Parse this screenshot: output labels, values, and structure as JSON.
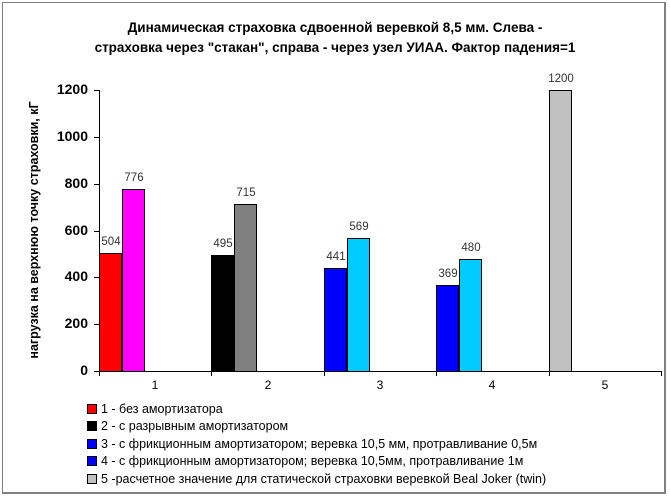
{
  "chart_data": {
    "type": "bar",
    "title": "Динамическая страховка сдвоенной веревкой 8,5 мм. Слева - страховка через \"стакан\", справа - через узел УИАА. Фактор падения=1",
    "title_lines": [
      "Динамическая страховка сдвоенной веревкой 8,5 мм. Слева -",
      "страховка через \"стакан\", справа - через узел УИАА. Фактор падения=1"
    ],
    "xlabel": "",
    "ylabel": "нагрузка на верхнюю точку страховки, кГ",
    "ylim": [
      0,
      1200
    ],
    "yticks": [
      "0",
      "200",
      "400",
      "600",
      "800",
      "1000",
      "1200"
    ],
    "categories": [
      "1",
      "2",
      "3",
      "4",
      "5"
    ],
    "grid": false,
    "legend_position": "bottom",
    "series": [
      {
        "name": "Слева - страховка через \"стакан\"",
        "values": [
          504,
          495,
          441,
          369,
          null
        ],
        "colors": [
          "#ff0000",
          "#000000",
          "#0000ff",
          "#0000ff",
          null
        ]
      },
      {
        "name": "Справа - через узел УИАА",
        "values": [
          776,
          715,
          569,
          480,
          null
        ],
        "colors": [
          "#ff00ff",
          "#808080",
          "#00ccff",
          "#00ccff",
          null
        ]
      },
      {
        "name": "Расчетное значение",
        "values": [
          null,
          null,
          null,
          null,
          1200
        ],
        "colors": [
          null,
          null,
          null,
          null,
          "#c0c0c0"
        ]
      }
    ],
    "bars": [
      {
        "category": "1",
        "value": 504,
        "label": "504",
        "color": "#ff0000"
      },
      {
        "category": "1",
        "value": 776,
        "label": "776",
        "color": "#ff00ff"
      },
      {
        "category": "2",
        "value": 495,
        "label": "495",
        "color": "#000000"
      },
      {
        "category": "2",
        "value": 715,
        "label": "715",
        "color": "#808080"
      },
      {
        "category": "3",
        "value": 441,
        "label": "441",
        "color": "#0000ff"
      },
      {
        "category": "3",
        "value": 569,
        "label": "569",
        "color": "#00ccff"
      },
      {
        "category": "4",
        "value": 369,
        "label": "369",
        "color": "#0000ff"
      },
      {
        "category": "4",
        "value": 480,
        "label": "480",
        "color": "#00ccff"
      },
      {
        "category": "5",
        "value": 1200,
        "label": "1200",
        "color": "#c0c0c0"
      }
    ],
    "legend": [
      {
        "label": "1 - без амортизатора",
        "color": "#ff0000"
      },
      {
        "label": "2 - с разрывным амортизатором",
        "color": "#000000"
      },
      {
        "label": "3 - с фрикционным амортизатором; веревка 10,5 мм, протравливание 0,5м",
        "color": "#0000ff"
      },
      {
        "label": "4 - с фрикционным амортизатором; веревка 10,5мм, протравливание 1м",
        "color": "#0000ff"
      },
      {
        "label": "5 -расчетное значение для статической страховки веревкой Beal Joker (twin)",
        "color": "#c0c0c0"
      }
    ]
  }
}
